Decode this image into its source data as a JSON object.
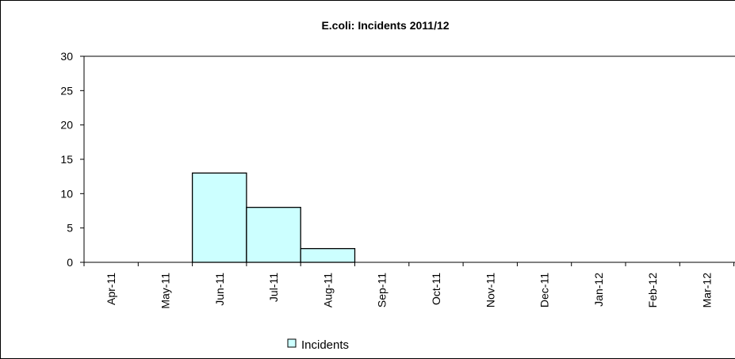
{
  "chart_data": {
    "type": "bar",
    "title": "E.coli: Incidents 2011/12",
    "xlabel": "",
    "ylabel": "",
    "categories": [
      "Apr-11",
      "May-11",
      "Jun-11",
      "Jul-11",
      "Aug-11",
      "Sep-11",
      "Oct-11",
      "Nov-11",
      "Dec-11",
      "Jan-12",
      "Feb-12",
      "Mar-12"
    ],
    "series": [
      {
        "name": "Incidents",
        "values": [
          0,
          0,
          13,
          8,
          2,
          0,
          0,
          0,
          0,
          0,
          0,
          0
        ]
      }
    ],
    "ylim": [
      0,
      30
    ],
    "yticks": [
      0,
      5,
      10,
      15,
      20,
      25,
      30
    ],
    "grid": false,
    "legend_position": "bottom",
    "colors": {
      "bar_fill": "#ccffff",
      "bar_stroke": "#000000",
      "axis": "#000000"
    }
  }
}
